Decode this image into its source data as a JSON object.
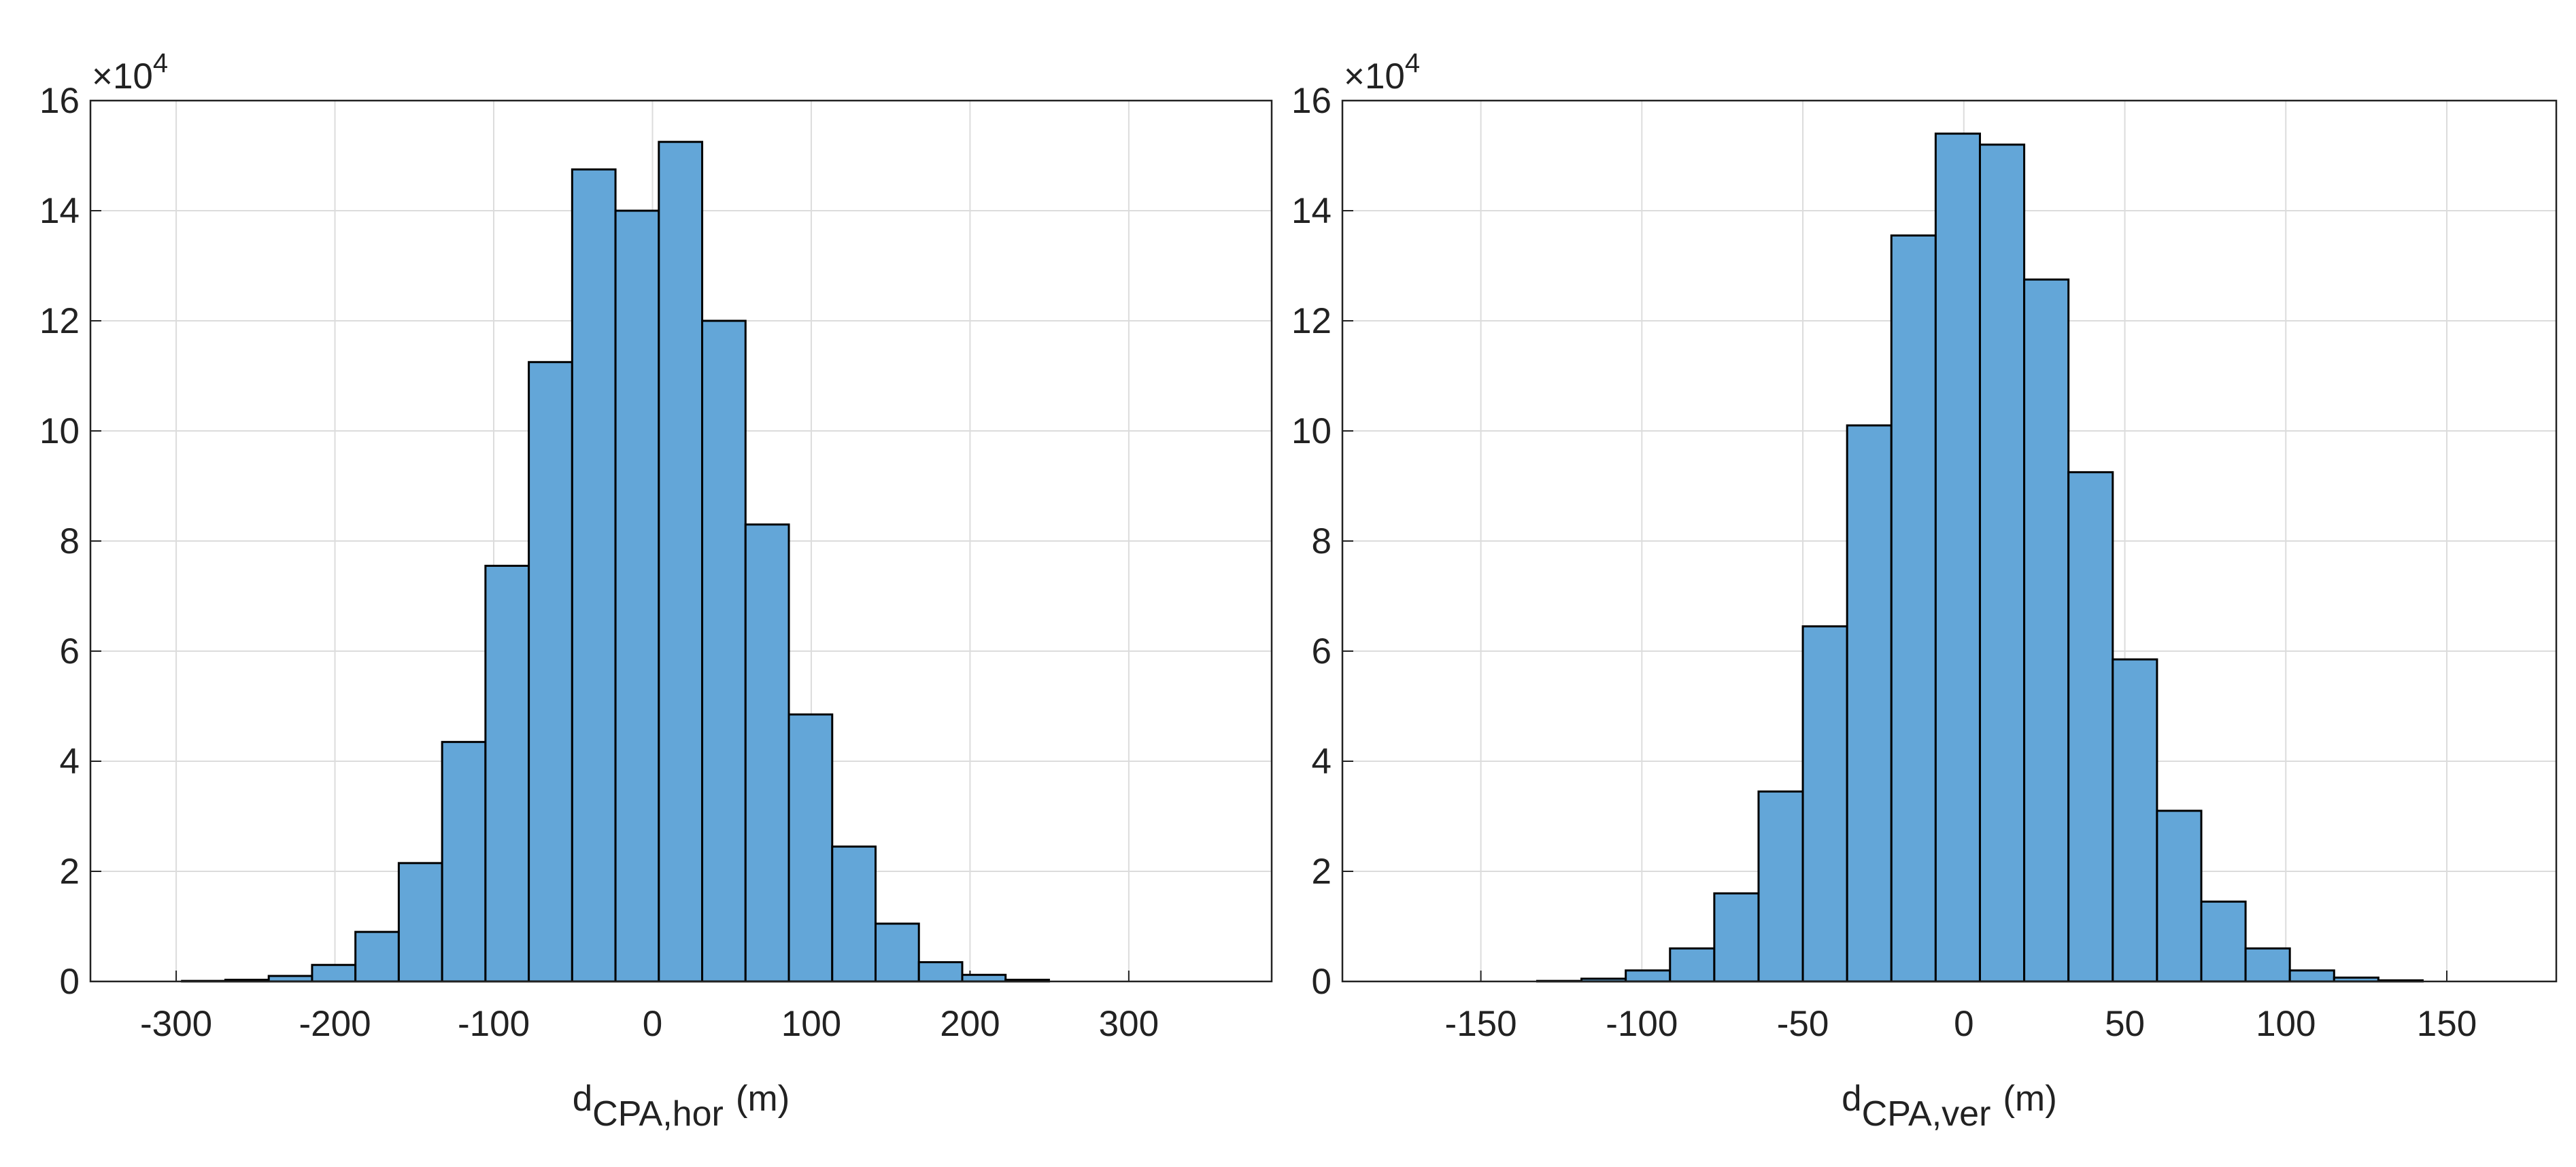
{
  "chart_data": [
    {
      "type": "histogram",
      "xlabel": {
        "base": "d",
        "sub": "CPA,hor",
        "unit": "(m)"
      },
      "y_multiplier": {
        "base": "×10",
        "exp": "4"
      },
      "bins": [
        -296.3,
        -269,
        -241.7,
        -214.4,
        -187.1,
        -159.8,
        -132.5,
        -105.2,
        -77.9,
        -50.6,
        -23.3,
        4,
        31.3,
        58.6,
        85.9,
        113.2,
        140.5,
        167.8,
        195.1,
        222.4,
        249.7
      ],
      "values": [
        0.01,
        0.03,
        0.1,
        0.3,
        0.9,
        2.15,
        4.35,
        7.55,
        11.25,
        14.75,
        14.0,
        15.25,
        12.0,
        8.3,
        4.85,
        2.45,
        1.05,
        0.35,
        0.12,
        0.03
      ],
      "color": "#63a6d8",
      "xlim": [
        -354,
        390
      ],
      "xticks": [
        -300,
        -200,
        -100,
        0,
        100,
        200,
        300
      ],
      "ylim": [
        0,
        16
      ],
      "yticks": [
        0,
        2,
        4,
        6,
        8,
        10,
        12,
        14,
        16
      ],
      "grid": true
    },
    {
      "type": "histogram",
      "xlabel": {
        "base": "d",
        "sub": "CPA,ver",
        "unit": "(m)"
      },
      "y_multiplier": {
        "base": "×10",
        "exp": "4"
      },
      "bins": [
        -132.5,
        -118.75,
        -105,
        -91.25,
        -77.5,
        -63.75,
        -50,
        -36.25,
        -22.5,
        -8.75,
        5,
        18.75,
        32.5,
        46.25,
        60,
        73.75,
        87.5,
        101.25,
        115,
        128.75,
        142.5
      ],
      "values": [
        0.01,
        0.05,
        0.2,
        0.6,
        1.6,
        3.45,
        6.45,
        10.1,
        13.55,
        15.4,
        15.2,
        12.75,
        9.25,
        5.85,
        3.1,
        1.45,
        0.6,
        0.2,
        0.07,
        0.02
      ],
      "color": "#63a6d8",
      "xlim": [
        -193,
        184
      ],
      "xticks": [
        -150,
        -100,
        -50,
        0,
        50,
        100,
        150
      ],
      "ylim": [
        0,
        16
      ],
      "yticks": [
        0,
        2,
        4,
        6,
        8,
        10,
        12,
        14,
        16
      ],
      "grid": true
    }
  ]
}
